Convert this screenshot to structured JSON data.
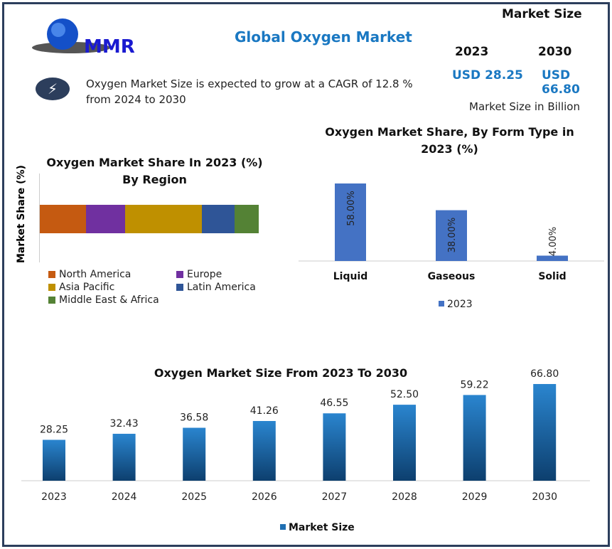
{
  "header": {
    "logo_text": "MMR",
    "title": "Global Oxygen Market",
    "cagr_text_1": "Oxygen Market Size is expected to grow at a CAGR of 12.8 %",
    "cagr_text_2": "from 2024 to 2030",
    "icon": "lightning-bolt-icon"
  },
  "market_size": {
    "label": "Market Size",
    "year1": "2023",
    "year2": "2030",
    "value1": "USD 28.25",
    "value2": "USD 66.80",
    "unit": "Market Size in Billion"
  },
  "chart_data": [
    {
      "type": "bar",
      "orientation": "horizontal-stacked",
      "title": "Oxygen Market Share In 2023 (%) By Region",
      "ylabel": "Market Share (%)",
      "legend_position": "bottom",
      "series": [
        {
          "name": "North America",
          "value": 21,
          "color": "#c55a11"
        },
        {
          "name": "Europe",
          "value": 18,
          "color": "#7030a0"
        },
        {
          "name": "Asia Pacific",
          "value": 35,
          "color": "#bf9000"
        },
        {
          "name": "Latin America",
          "value": 15,
          "color": "#2f5597"
        },
        {
          "name": "Middle East & Africa",
          "value": 11,
          "color": "#548235"
        }
      ]
    },
    {
      "type": "bar",
      "title": "Oxygen Market Share, By Form Type  in 2023 (%)",
      "categories": [
        "Liquid",
        "Gaseous",
        "Solid"
      ],
      "values": [
        58,
        38,
        4
      ],
      "data_labels": [
        "58.00%",
        "38.00%",
        "4.00%"
      ],
      "series_name": "2023",
      "color": "#4472c4",
      "legend_position": "bottom"
    },
    {
      "type": "bar",
      "title": "Oxygen Market Size From 2023 To 2030",
      "categories": [
        "2023",
        "2024",
        "2025",
        "2026",
        "2027",
        "2028",
        "2029",
        "2030"
      ],
      "values": [
        28.25,
        32.43,
        36.58,
        41.26,
        46.55,
        52.5,
        59.22,
        66.8
      ],
      "data_labels": [
        "28.25",
        "32.43",
        "36.58",
        "41.26",
        "46.55",
        "52.50",
        "59.22",
        "66.80"
      ],
      "series_name": "Market Size",
      "color": "#1f6fb2",
      "legend_position": "bottom"
    }
  ]
}
